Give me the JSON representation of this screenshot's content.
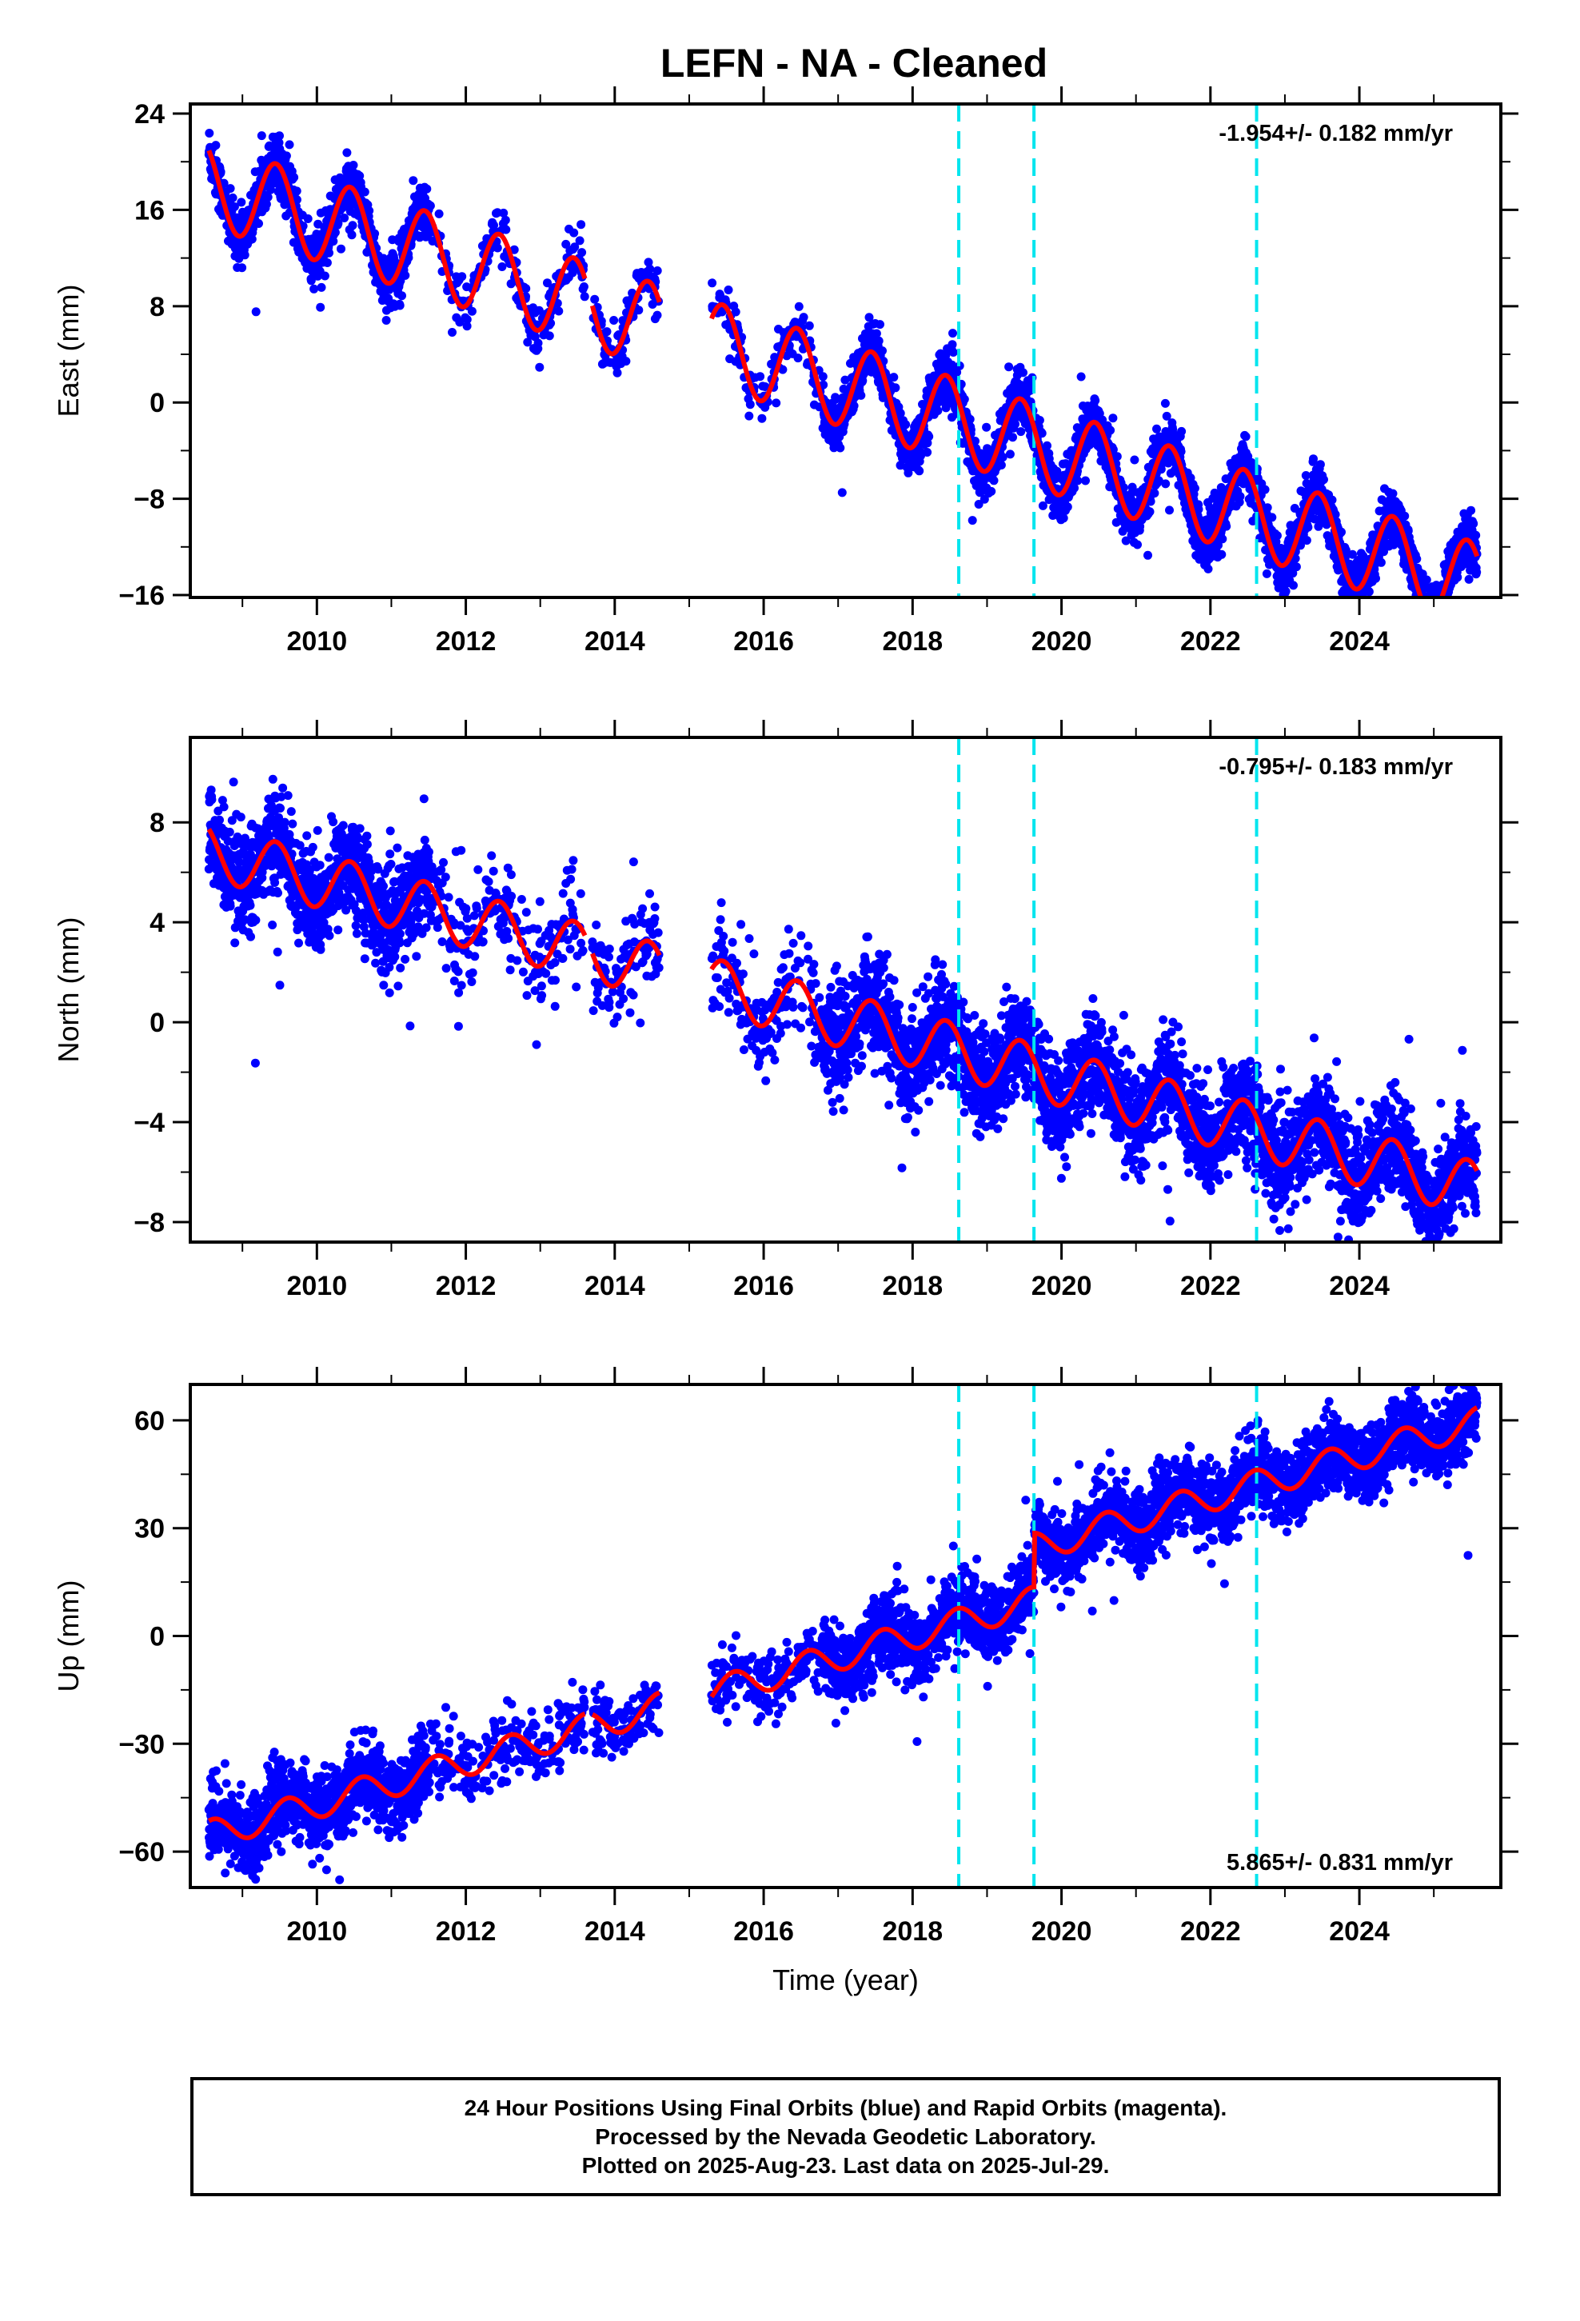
{
  "chart_data": [
    {
      "type": "scatter",
      "title": "LEFN  - NA - Cleaned",
      "ylabel": "East (mm)",
      "xlabel": "",
      "rate": "-1.954+/- 0.182 mm/yr",
      "rate_position": "top-right",
      "xlim": [
        2008.3,
        2025.9
      ],
      "ylim": [
        -16.2,
        24.8
      ],
      "xticks": [
        2010,
        2012,
        2014,
        2016,
        2018,
        2020,
        2022,
        2024
      ],
      "yticks": [
        24,
        16,
        8,
        0,
        -8,
        -16
      ],
      "trend": {
        "intercept_2008_6": 18.0,
        "slope_mm_per_yr": -1.954,
        "annual_amplitude": 3.5,
        "phase_peak_year_fraction": 0.45
      },
      "data_segments": [
        [
          2008.55,
          2013.6
        ],
        [
          2013.7,
          2014.6
        ],
        [
          2015.3,
          2025.58
        ]
      ],
      "dense_from": 2016.8,
      "scatter_sigma": 1.1,
      "equipment_changes": [
        2018.62,
        2019.63,
        2022.62
      ],
      "series": [
        {
          "name": "Final Orbits",
          "color": "#0000ff",
          "kind": "points"
        },
        {
          "name": "Model fit",
          "color": "#ff0000",
          "kind": "line"
        }
      ]
    },
    {
      "type": "scatter",
      "title": "",
      "ylabel": "North (mm)",
      "xlabel": "",
      "rate": "-0.795+/- 0.183 mm/yr",
      "rate_position": "top-right",
      "xlim": [
        2008.3,
        2025.9
      ],
      "ylim": [
        -8.8,
        11.4
      ],
      "xticks": [
        2010,
        2012,
        2014,
        2016,
        2018,
        2020,
        2022,
        2024
      ],
      "yticks": [
        8,
        4,
        0,
        -4,
        -8
      ],
      "trend": {
        "intercept_2008_6": 6.8,
        "slope_mm_per_yr": -0.795,
        "annual_amplitude": 1.1,
        "phase_peak_year_fraction": 0.45
      },
      "data_segments": [
        [
          2008.55,
          2013.6
        ],
        [
          2013.7,
          2014.6
        ],
        [
          2015.3,
          2025.58
        ]
      ],
      "dense_from": 2016.8,
      "scatter_sigma": 1.0,
      "equipment_changes": [
        2018.62,
        2019.63,
        2022.62
      ],
      "series": [
        {
          "name": "Final Orbits",
          "color": "#0000ff",
          "kind": "points"
        },
        {
          "name": "Model fit",
          "color": "#ff0000",
          "kind": "line"
        }
      ]
    },
    {
      "type": "scatter",
      "title": "",
      "ylabel": "Up (mm)",
      "xlabel": "Time (year)",
      "rate": "5.865+/- 0.831 mm/yr",
      "rate_position": "bottom-right",
      "xlim": [
        2008.3,
        2025.9
      ],
      "ylim": [
        -70,
        70
      ],
      "xticks": [
        2010,
        2012,
        2014,
        2016,
        2018,
        2020,
        2022,
        2024
      ],
      "yticks": [
        60,
        30,
        0,
        -30,
        -60
      ],
      "trend": {
        "intercept_2008_6": -55.0,
        "slope_mm_per_yr": 5.865,
        "annual_amplitude": 4.0,
        "phase_peak_year_fraction": 0.6
      },
      "offsets": [
        {
          "year": 2019.63,
          "value": 15
        }
      ],
      "data_segments": [
        [
          2008.55,
          2013.6
        ],
        [
          2013.7,
          2014.6
        ],
        [
          2015.3,
          2025.58
        ]
      ],
      "dense_from": 2016.8,
      "scatter_sigma": 5.0,
      "equipment_changes": [
        2018.62,
        2019.63,
        2022.62
      ],
      "series": [
        {
          "name": "Final Orbits",
          "color": "#0000ff",
          "kind": "points"
        },
        {
          "name": "Model fit",
          "color": "#ff0000",
          "kind": "line"
        }
      ]
    }
  ],
  "colors": {
    "points": "#0000ff",
    "fit_line": "#ff0000",
    "equipment_change_line": "#00e5ee",
    "frame": "#000000"
  },
  "footer": {
    "line1": "24 Hour Positions Using Final Orbits (blue) and Rapid Orbits (magenta).",
    "line2": "Processed by the Nevada Geodetic Laboratory.",
    "line3": "Plotted on 2025-Aug-23. Last data on 2025-Jul-29."
  }
}
